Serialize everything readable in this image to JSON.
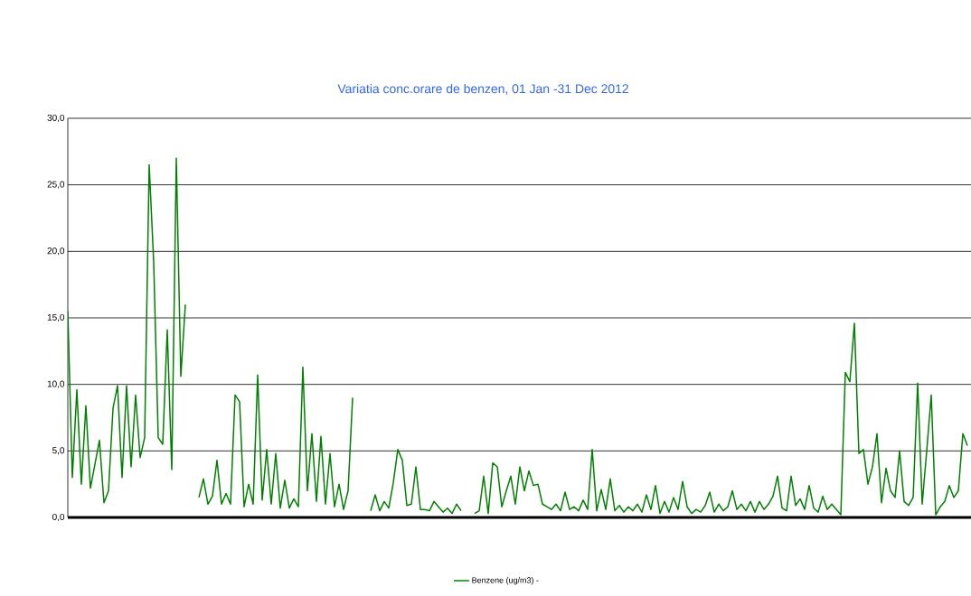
{
  "chart_data": {
    "type": "line",
    "title": "Variatia conc.orare de benzen, 01 Jan -31 Dec 2012",
    "categories": [
      null,
      null,
      null,
      null,
      null,
      null,
      null,
      null,
      null,
      null,
      null,
      null,
      null,
      null,
      null,
      null,
      null,
      null,
      null,
      null,
      null,
      null,
      null,
      null,
      null,
      null,
      null,
      null,
      null,
      null,
      null,
      null,
      null,
      null,
      null,
      null,
      null,
      null,
      null,
      null,
      null,
      null,
      null,
      null,
      null,
      null,
      null,
      null,
      null,
      null,
      null,
      null,
      null,
      null,
      null,
      null,
      null,
      null,
      null,
      null,
      null,
      null,
      null,
      null,
      null,
      null,
      null,
      null,
      null,
      null,
      null,
      null,
      null,
      null,
      null,
      null,
      null,
      null,
      null,
      null,
      null,
      null,
      null,
      null,
      null,
      null,
      null,
      null,
      null,
      null,
      null,
      null,
      null,
      null,
      null,
      null,
      null,
      null,
      null,
      null,
      null,
      null,
      null,
      null,
      null,
      null,
      null,
      null,
      null,
      null,
      null,
      null,
      null,
      null,
      null,
      null,
      null,
      null,
      null,
      null,
      null,
      null,
      null,
      null,
      null,
      null,
      null,
      null,
      null,
      null,
      null,
      null,
      null,
      null,
      null,
      null,
      null,
      null,
      null,
      null,
      null,
      null,
      null,
      null,
      null,
      null,
      null,
      null,
      null,
      null,
      null,
      null,
      null,
      null,
      null,
      null,
      null,
      null,
      null,
      null,
      null,
      null,
      null,
      null,
      null,
      null,
      null,
      null,
      null,
      null,
      null,
      null,
      null,
      null,
      null,
      null,
      null,
      null,
      null,
      null,
      null,
      null,
      null,
      null,
      null,
      null,
      null,
      null,
      null,
      null,
      null,
      null,
      null,
      null,
      null,
      null,
      null,
      null,
      null,
      null
    ],
    "series": [
      {
        "name": "Benzene (ug/m3)  -",
        "color": "#008000",
        "values": [
          15.5,
          3.0,
          9.6,
          2.5,
          8.4,
          2.2,
          4.0,
          5.8,
          1.1,
          2.0,
          8.2,
          9.9,
          3.0,
          9.9,
          3.8,
          9.2,
          4.5,
          6.0,
          26.5,
          19.2,
          6.0,
          5.5,
          14.1,
          3.6,
          27.0,
          10.6,
          16.0,
          null,
          null,
          null,
          null,
          null,
          null,
          null,
          null,
          null,
          null,
          null,
          null,
          null,
          null,
          null,
          null,
          null,
          null,
          null,
          null,
          null,
          null,
          null,
          null,
          null,
          null,
          null,
          null,
          null,
          null,
          null,
          null,
          null,
          null,
          null,
          null,
          null,
          null,
          null,
          null,
          null,
          null,
          null,
          null,
          null,
          null,
          null,
          null,
          null,
          null,
          null,
          null,
          null,
          null,
          null,
          null,
          null,
          null,
          null,
          null,
          null,
          null,
          null,
          null,
          null,
          null,
          null,
          null,
          null,
          null,
          null,
          null,
          null,
          null,
          null,
          null,
          null,
          null,
          null,
          null,
          null,
          null,
          null,
          null,
          null,
          null,
          null,
          null,
          null,
          null,
          null,
          null,
          null,
          null,
          null,
          null,
          null,
          null,
          null,
          null,
          null,
          null,
          null,
          null,
          null,
          null,
          null,
          null,
          null,
          null,
          null,
          null,
          null,
          null,
          null,
          null,
          null,
          null,
          null,
          null,
          null,
          null,
          null,
          null,
          null,
          null,
          null,
          null,
          null,
          null,
          null,
          null,
          null,
          null,
          null,
          null,
          null,
          null,
          null,
          null,
          null,
          null,
          null,
          null,
          null,
          null,
          null,
          null,
          null,
          null,
          null,
          null,
          null,
          null,
          null,
          null,
          null,
          null,
          null,
          null,
          null,
          null,
          null,
          null,
          null,
          null,
          null,
          null,
          null,
          null,
          null,
          null,
          null
        ]
      },
      {
        "color": "#008000",
        "values": [
          null,
          null,
          null,
          null,
          null,
          null,
          null,
          null,
          null,
          null,
          null,
          null,
          null,
          null,
          null,
          null,
          null,
          null,
          null,
          null,
          null,
          null,
          null,
          null,
          null,
          null,
          null,
          null,
          null,
          1.5,
          2.9,
          1.0,
          1.6,
          4.3,
          1.0,
          1.8,
          1.0,
          9.2,
          8.7,
          0.8,
          2.5,
          1.0,
          10.7,
          1.3,
          5.1,
          1.0,
          4.8,
          0.7,
          2.8,
          0.7,
          1.4,
          0.8,
          11.3,
          2.0,
          6.3,
          1.2,
          6.1,
          1.0,
          4.8,
          0.8,
          2.5,
          0.6,
          2.0,
          9.0,
          null,
          null,
          null,
          null,
          null,
          null,
          null,
          null,
          null,
          null,
          null,
          null,
          null,
          null,
          null,
          null,
          null,
          null,
          null,
          null,
          null,
          null,
          null,
          null,
          null,
          null,
          null,
          null,
          null,
          null,
          null,
          null,
          null,
          null,
          null,
          null,
          null,
          null,
          null,
          null,
          null,
          null,
          null,
          null,
          null,
          null,
          null,
          null,
          null,
          null,
          null,
          null,
          null,
          null,
          null,
          null,
          null,
          null,
          null,
          null,
          null,
          null,
          null,
          null,
          null,
          null,
          null,
          null,
          null,
          null,
          null,
          null,
          null,
          null,
          null,
          null,
          null,
          null,
          null,
          null,
          null,
          null,
          null,
          null,
          null,
          null,
          null,
          null,
          null,
          null,
          null,
          null,
          null,
          null,
          null,
          null,
          null,
          null,
          null,
          null,
          null,
          null,
          null,
          null,
          null,
          null,
          null,
          null,
          null,
          null,
          null,
          null,
          null,
          null,
          null,
          null,
          null,
          null,
          null,
          null,
          null,
          null,
          null,
          null,
          null,
          null,
          null,
          null,
          null,
          null,
          null,
          null,
          null,
          null,
          null,
          null
        ]
      },
      {
        "color": "#008000",
        "values": [
          null,
          null,
          null,
          null,
          null,
          null,
          null,
          null,
          null,
          null,
          null,
          null,
          null,
          null,
          null,
          null,
          null,
          null,
          null,
          null,
          null,
          null,
          null,
          null,
          null,
          null,
          null,
          null,
          null,
          null,
          null,
          null,
          null,
          null,
          null,
          null,
          null,
          null,
          null,
          null,
          null,
          null,
          null,
          null,
          null,
          null,
          null,
          null,
          null,
          null,
          null,
          null,
          null,
          null,
          null,
          null,
          null,
          null,
          null,
          null,
          null,
          null,
          null,
          null,
          null,
          null,
          null,
          0.5,
          1.7,
          0.5,
          1.2,
          0.7,
          2.6,
          5.1,
          4.3,
          0.9,
          1.0,
          3.8,
          0.6,
          0.6,
          0.5,
          1.2,
          0.8,
          0.4,
          0.7,
          0.3,
          1.0,
          0.5,
          null,
          null,
          null,
          null,
          null,
          null,
          null,
          null,
          null,
          null,
          null,
          null,
          null,
          null,
          null,
          null,
          null,
          null,
          null,
          null,
          null,
          null,
          null,
          null,
          null,
          null,
          null,
          null,
          null,
          null,
          null,
          null,
          null,
          null,
          null,
          null,
          null,
          null,
          null,
          null,
          null,
          null,
          null,
          null,
          null,
          null,
          null,
          null,
          null,
          null,
          null,
          null,
          null,
          null,
          null,
          null,
          null,
          null,
          null,
          null,
          null,
          null,
          null,
          null,
          null,
          null,
          null,
          null,
          null,
          null,
          null,
          null,
          null,
          null,
          null,
          null,
          null,
          null,
          null,
          null,
          null,
          null,
          null,
          null,
          null,
          null,
          null,
          null,
          null,
          null,
          null,
          null,
          null,
          null,
          null,
          null,
          null,
          null,
          null,
          null,
          null,
          null,
          null,
          null,
          null,
          null,
          null,
          null,
          null,
          null,
          null,
          null
        ]
      },
      {
        "color": "#008000",
        "values": [
          null,
          null,
          null,
          null,
          null,
          null,
          null,
          null,
          null,
          null,
          null,
          null,
          null,
          null,
          null,
          null,
          null,
          null,
          null,
          null,
          null,
          null,
          null,
          null,
          null,
          null,
          null,
          null,
          null,
          null,
          null,
          null,
          null,
          null,
          null,
          null,
          null,
          null,
          null,
          null,
          null,
          null,
          null,
          null,
          null,
          null,
          null,
          null,
          null,
          null,
          null,
          null,
          null,
          null,
          null,
          null,
          null,
          null,
          null,
          null,
          null,
          null,
          null,
          null,
          null,
          null,
          null,
          null,
          null,
          null,
          null,
          null,
          null,
          null,
          null,
          null,
          null,
          null,
          null,
          null,
          null,
          null,
          null,
          null,
          null,
          null,
          null,
          null,
          null,
          null,
          0.3,
          0.5,
          3.1,
          0.3,
          4.1,
          3.8,
          0.8,
          2.0,
          3.1,
          1.0,
          3.8,
          2.0,
          3.5,
          2.4,
          2.5,
          1.0,
          0.8,
          0.6,
          1.0,
          0.5,
          1.9,
          0.6,
          0.8,
          0.5,
          1.3,
          0.6,
          5.1,
          0.5,
          2.1,
          0.6,
          2.9,
          0.5,
          0.9,
          0.4,
          0.8,
          0.5,
          1.0,
          0.4,
          1.7,
          0.6,
          2.4,
          0.3,
          1.2,
          0.4,
          1.5,
          0.6,
          2.7,
          0.8,
          0.3,
          0.6,
          0.4,
          0.9,
          1.9,
          0.4,
          1.0,
          0.5,
          0.8,
          2.0,
          0.6,
          1.0,
          0.5,
          1.2,
          0.4,
          1.2,
          0.6,
          1.0,
          1.6,
          3.1,
          0.7,
          0.5,
          3.1,
          0.9,
          1.4,
          0.6,
          2.4,
          0.7,
          0.4,
          1.6,
          0.6,
          1.0,
          0.6,
          0.2,
          10.9,
          10.2,
          14.6,
          4.8,
          5.1,
          2.5,
          3.8,
          6.3,
          1.1,
          3.7,
          2.0,
          1.5,
          5.0,
          1.2,
          0.9,
          1.5,
          10.1,
          1.0,
          5.0,
          9.2,
          0.2,
          0.8,
          1.2,
          2.4,
          1.5,
          2.0,
          6.3,
          5.4
        ]
      }
    ],
    "ylim": [
      0,
      30
    ],
    "yticks": [
      {
        "value": 0,
        "label": "0,0"
      },
      {
        "value": 5,
        "label": "5,0"
      },
      {
        "value": 10,
        "label": "10,0"
      },
      {
        "value": 15,
        "label": "15,0"
      },
      {
        "value": 20,
        "label": "20,0"
      },
      {
        "value": 25,
        "label": "25,0"
      },
      {
        "value": 30,
        "label": "30,0"
      }
    ],
    "tick_labels": "y",
    "grid": "y",
    "legend": "bottom",
    "marker": "none",
    "line_style": "solid"
  }
}
